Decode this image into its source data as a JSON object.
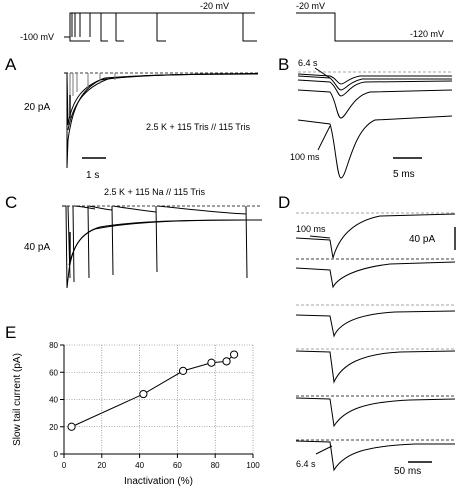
{
  "panels": {
    "A": {
      "label": "A",
      "protocol": {
        "holding": "-100 mV",
        "step": "-20 mV"
      },
      "scale_current": "20 pA",
      "scale_time": "1 s",
      "solution": "2.5 K + 115 Tris // 115 Tris"
    },
    "B": {
      "label": "B",
      "protocol": {
        "start": "-20 mV",
        "end": "-120 mV"
      },
      "annot_top": "6.4 s",
      "annot_bottom": "100 ms",
      "scale_time": "5 ms"
    },
    "C": {
      "label": "C",
      "solution": "2.5 K + 115 Na // 115 Tris",
      "scale_current": "40 pA"
    },
    "D": {
      "label": "D",
      "annot_top": "100 ms",
      "annot_bottom": "6.4 s",
      "scale_current": "40 pA",
      "scale_time": "50 ms"
    },
    "E": {
      "label": "E"
    }
  },
  "chart_data": {
    "type": "scatter",
    "title": "",
    "xlabel": "Inactivation (%)",
    "ylabel": "Slow tail current (pA)",
    "xlim": [
      0,
      100
    ],
    "ylim": [
      0,
      80
    ],
    "xticks": [
      "0",
      "20",
      "40",
      "60",
      "80",
      "100"
    ],
    "yticks": [
      "0",
      "20",
      "40",
      "60",
      "80"
    ],
    "grid": true,
    "series": [
      {
        "x": [
          4,
          42,
          63,
          78,
          86,
          90
        ],
        "y": [
          20,
          44,
          61,
          67,
          68,
          73
        ]
      }
    ]
  }
}
